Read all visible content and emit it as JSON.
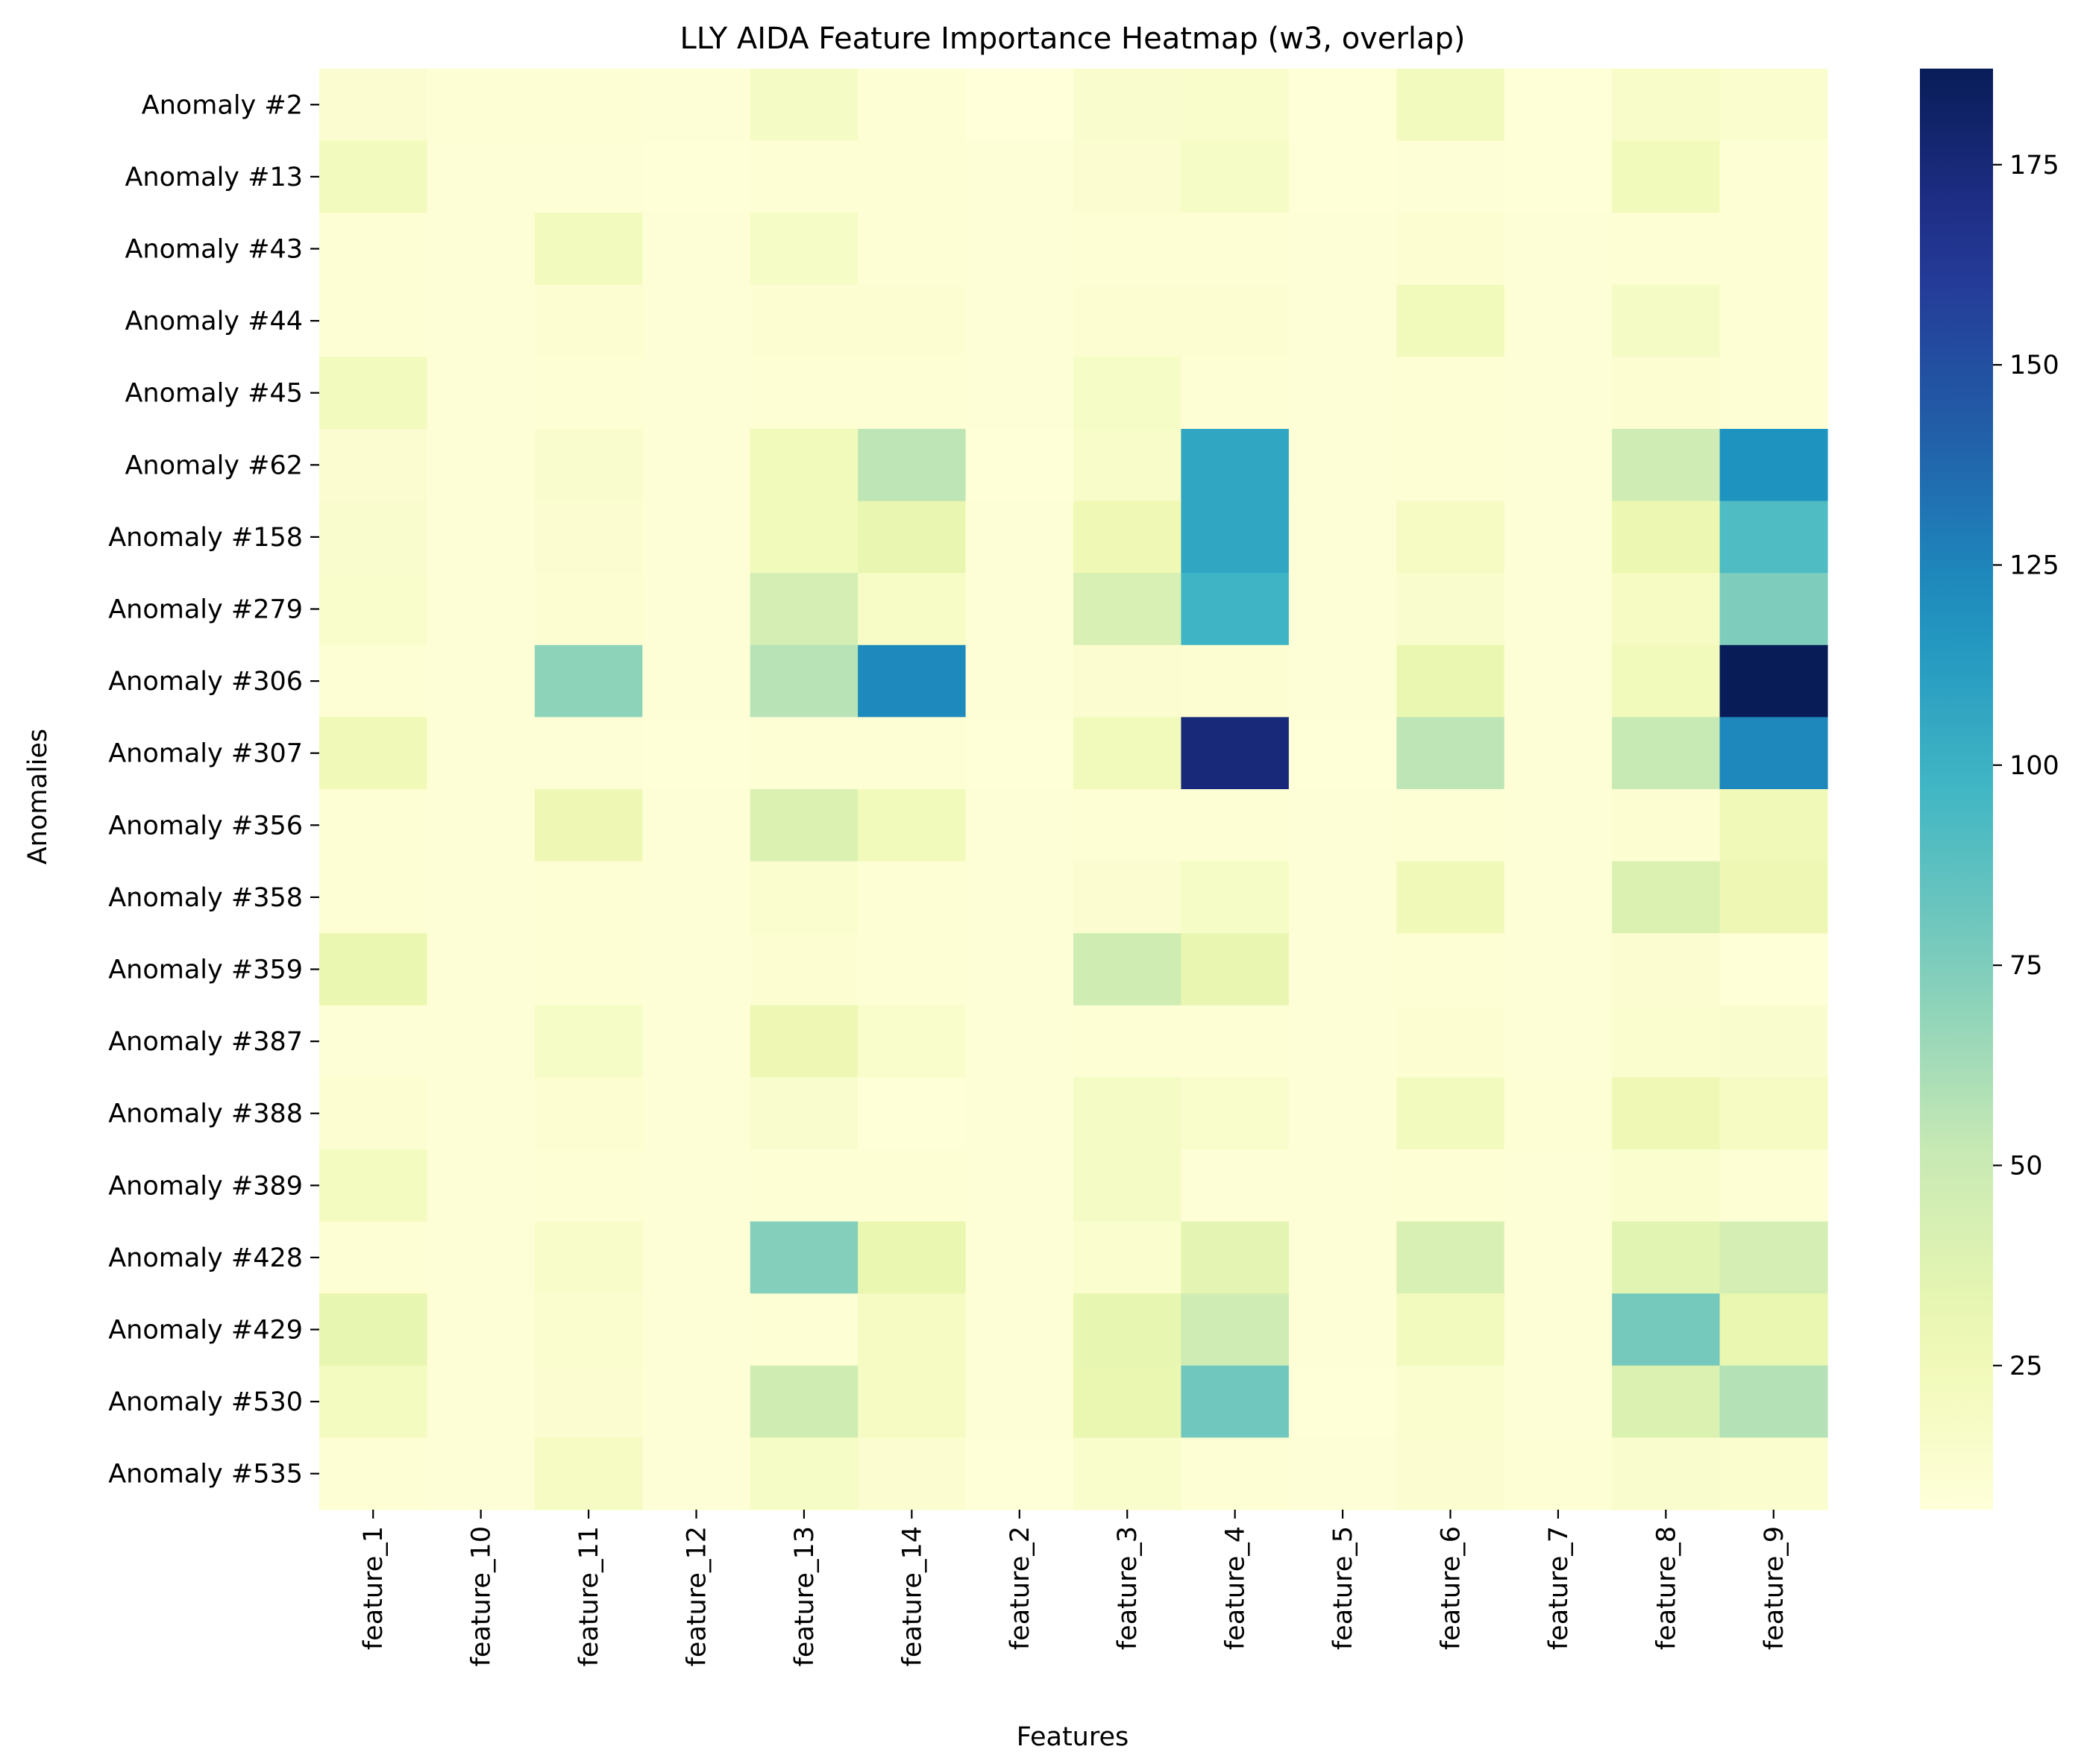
{
  "chart_data": {
    "type": "heatmap",
    "title": "LLY AIDA Feature Importance Heatmap (w3, overlap)",
    "xlabel": "Features",
    "ylabel": "Anomalies",
    "colormap": "YlGnBu",
    "colorbar": {
      "min": 7,
      "max": 187,
      "ticks": [
        25,
        50,
        75,
        100,
        125,
        150,
        175
      ]
    },
    "columns": [
      "feature_1",
      "feature_10",
      "feature_11",
      "feature_12",
      "feature_13",
      "feature_14",
      "feature_2",
      "feature_3",
      "feature_4",
      "feature_5",
      "feature_6",
      "feature_7",
      "feature_8",
      "feature_9"
    ],
    "rows": [
      "Anomaly #2",
      "Anomaly #13",
      "Anomaly #43",
      "Anomaly #44",
      "Anomaly #45",
      "Anomaly #62",
      "Anomaly #158",
      "Anomaly #279",
      "Anomaly #306",
      "Anomaly #307",
      "Anomaly #356",
      "Anomaly #358",
      "Anomaly #359",
      "Anomaly #387",
      "Anomaly #388",
      "Anomaly #389",
      "Anomaly #428",
      "Anomaly #429",
      "Anomaly #530",
      "Anomaly #535"
    ],
    "values": [
      [
        12,
        10,
        10,
        9,
        19,
        10,
        7,
        14,
        15,
        8,
        22,
        8,
        16,
        13
      ],
      [
        23,
        9,
        9,
        8,
        10,
        10,
        9,
        12,
        18,
        8,
        9,
        8,
        24,
        10
      ],
      [
        10,
        9,
        22,
        9,
        18,
        10,
        9,
        10,
        10,
        9,
        11,
        9,
        10,
        10
      ],
      [
        10,
        9,
        11,
        9,
        11,
        11,
        9,
        11,
        11,
        9,
        24,
        9,
        19,
        10
      ],
      [
        23,
        9,
        10,
        9,
        10,
        10,
        9,
        18,
        10,
        9,
        10,
        9,
        11,
        10
      ],
      [
        12,
        9,
        14,
        9,
        24,
        55,
        8,
        16,
        107,
        9,
        10,
        9,
        48,
        118
      ],
      [
        14,
        9,
        12,
        9,
        24,
        32,
        9,
        27,
        107,
        9,
        20,
        9,
        30,
        92
      ],
      [
        15,
        9,
        11,
        9,
        44,
        17,
        9,
        42,
        98,
        9,
        14,
        9,
        20,
        75
      ],
      [
        10,
        9,
        70,
        9,
        57,
        123,
        9,
        12,
        11,
        9,
        31,
        9,
        24,
        187
      ],
      [
        26,
        9,
        9,
        8,
        10,
        10,
        8,
        24,
        175,
        8,
        55,
        9,
        52,
        124
      ],
      [
        10,
        9,
        28,
        9,
        40,
        24,
        9,
        10,
        10,
        9,
        10,
        9,
        11,
        25
      ],
      [
        10,
        9,
        10,
        9,
        13,
        10,
        9,
        12,
        18,
        9,
        25,
        9,
        40,
        28
      ],
      [
        31,
        9,
        10,
        9,
        11,
        10,
        9,
        47,
        32,
        9,
        10,
        9,
        12,
        8
      ],
      [
        9,
        9,
        18,
        9,
        28,
        15,
        9,
        10,
        10,
        9,
        11,
        9,
        13,
        14
      ],
      [
        11,
        9,
        11,
        9,
        14,
        8,
        9,
        19,
        15,
        9,
        22,
        10,
        27,
        20
      ],
      [
        21,
        9,
        10,
        9,
        10,
        10,
        9,
        19,
        9,
        9,
        10,
        9,
        13,
        10
      ],
      [
        10,
        9,
        16,
        9,
        73,
        31,
        9,
        13,
        35,
        9,
        42,
        9,
        36,
        44
      ],
      [
        33,
        9,
        13,
        9,
        10,
        20,
        9,
        33,
        48,
        9,
        22,
        9,
        78,
        31
      ],
      [
        21,
        9,
        12,
        9,
        47,
        20,
        9,
        31,
        80,
        8,
        13,
        9,
        40,
        58
      ],
      [
        10,
        9,
        20,
        9,
        18,
        12,
        8,
        15,
        10,
        9,
        12,
        10,
        14,
        13
      ]
    ]
  }
}
